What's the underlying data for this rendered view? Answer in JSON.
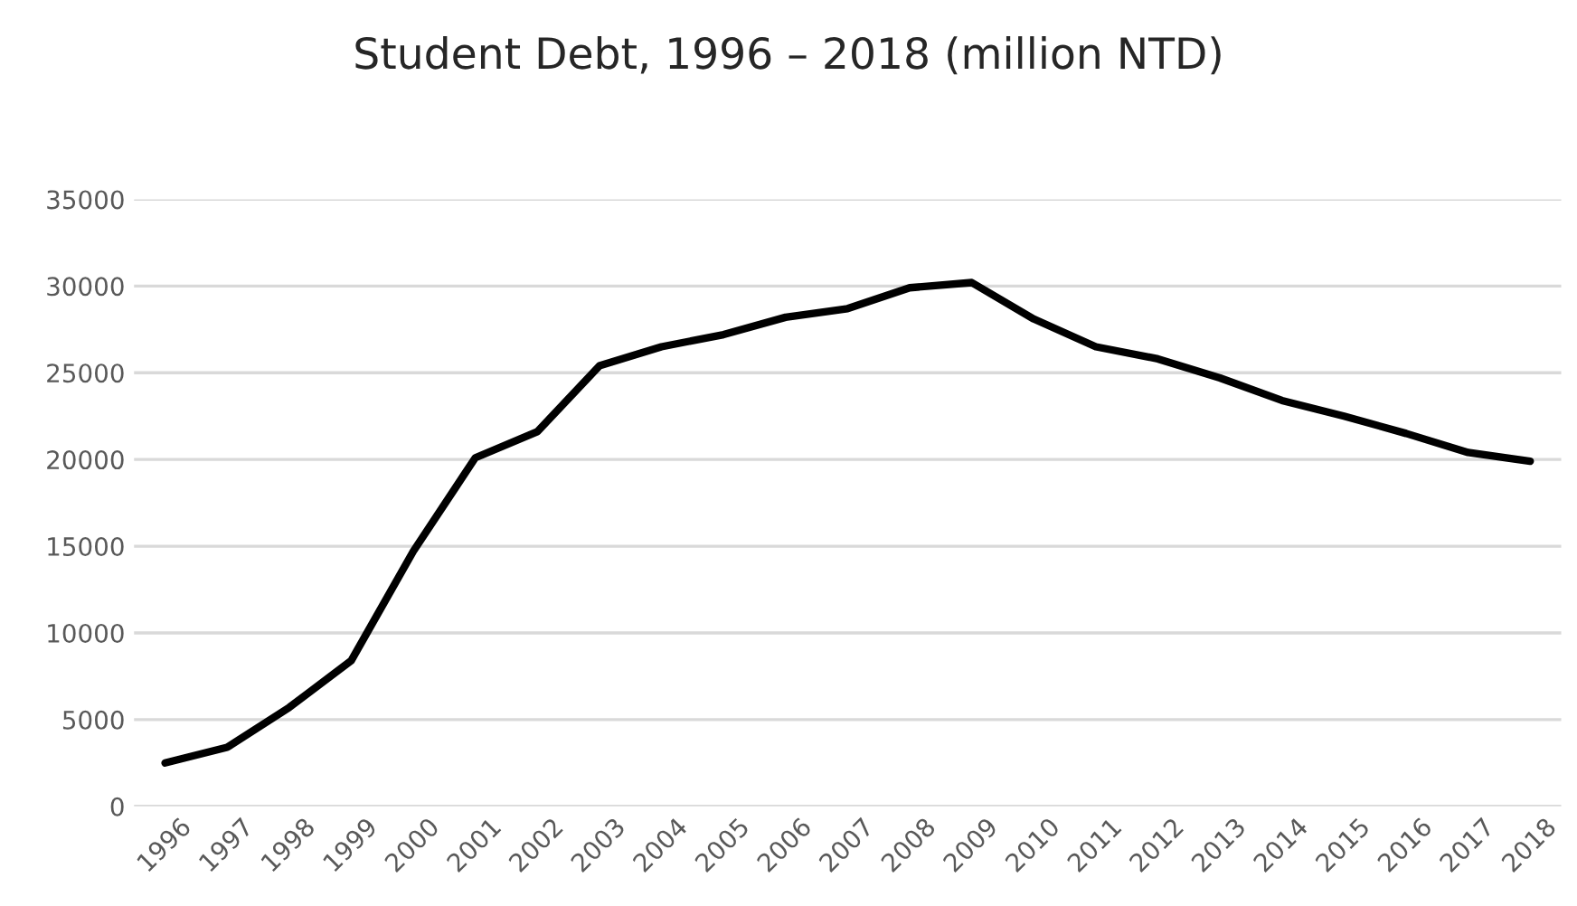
{
  "chart_data": {
    "type": "line",
    "title": "Student Debt, 1996 – 2018 (million NTD)",
    "categories": [
      "1996",
      "1997",
      "1998",
      "1999",
      "2000",
      "2001",
      "2002",
      "2003",
      "2004",
      "2005",
      "2006",
      "2007",
      "2008",
      "2009",
      "2010",
      "2011",
      "2012",
      "2013",
      "2014",
      "2015",
      "2016",
      "2017",
      "2018"
    ],
    "series": [
      {
        "color": "#000000",
        "values": [
          2500,
          3400,
          5700,
          8400,
          14700,
          20100,
          21600,
          25400,
          26500,
          27200,
          28200,
          28700,
          29900,
          30200,
          28100,
          26500,
          25800,
          24700,
          23400,
          22500,
          21500,
          20400,
          19900
        ]
      }
    ],
    "ylim": [
      0,
      35000
    ],
    "yticks": [
      0,
      5000,
      10000,
      15000,
      20000,
      25000,
      30000,
      35000
    ],
    "grid": "y",
    "marker": "none",
    "line_style": "solid"
  }
}
